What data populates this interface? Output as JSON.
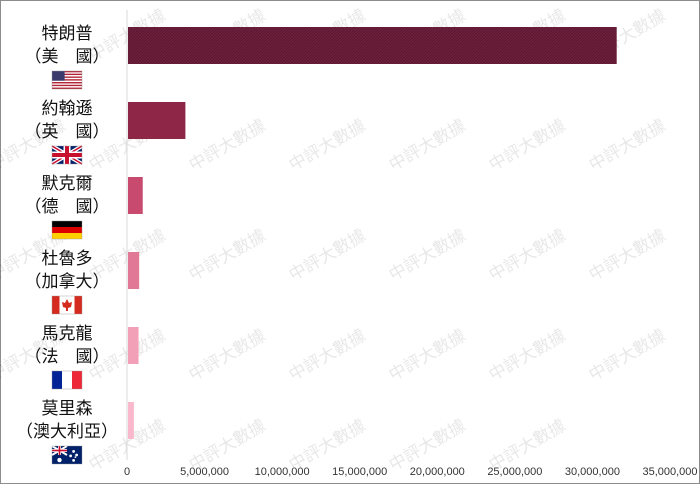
{
  "chart_data": {
    "type": "bar",
    "orientation": "horizontal",
    "categories": [
      {
        "name": "特朗普",
        "country": "（美　國）",
        "flag": "us-flag-icon"
      },
      {
        "name": "約翰遜",
        "country": "（英　國）",
        "flag": "uk-flag-icon"
      },
      {
        "name": "默克爾",
        "country": "（德　國）",
        "flag": "germany-flag-icon"
      },
      {
        "name": "杜魯多",
        "country": "（加拿大）",
        "flag": "canada-flag-icon"
      },
      {
        "name": "馬克龍",
        "country": "（法　國）",
        "flag": "france-flag-icon"
      },
      {
        "name": "莫里森",
        "country": "（澳大利亞）",
        "flag": "australia-flag-icon"
      }
    ],
    "values": [
      31500000,
      3700000,
      950000,
      720000,
      680000,
      380000
    ],
    "colors": [
      "#6d1f3b",
      "#8e2747",
      "#c84a6e",
      "#e07896",
      "#f2a0b8",
      "#f9b8cc"
    ],
    "xlim": [
      0,
      35000000
    ],
    "xticks": [
      "0",
      "5,000,000",
      "10,000,000",
      "15,000,000",
      "20,000,000",
      "25,000,000",
      "30,000,000",
      "35,000,000"
    ],
    "title": "",
    "xlabel": "",
    "ylabel": "",
    "grid": false,
    "watermark": "中評大數據"
  }
}
